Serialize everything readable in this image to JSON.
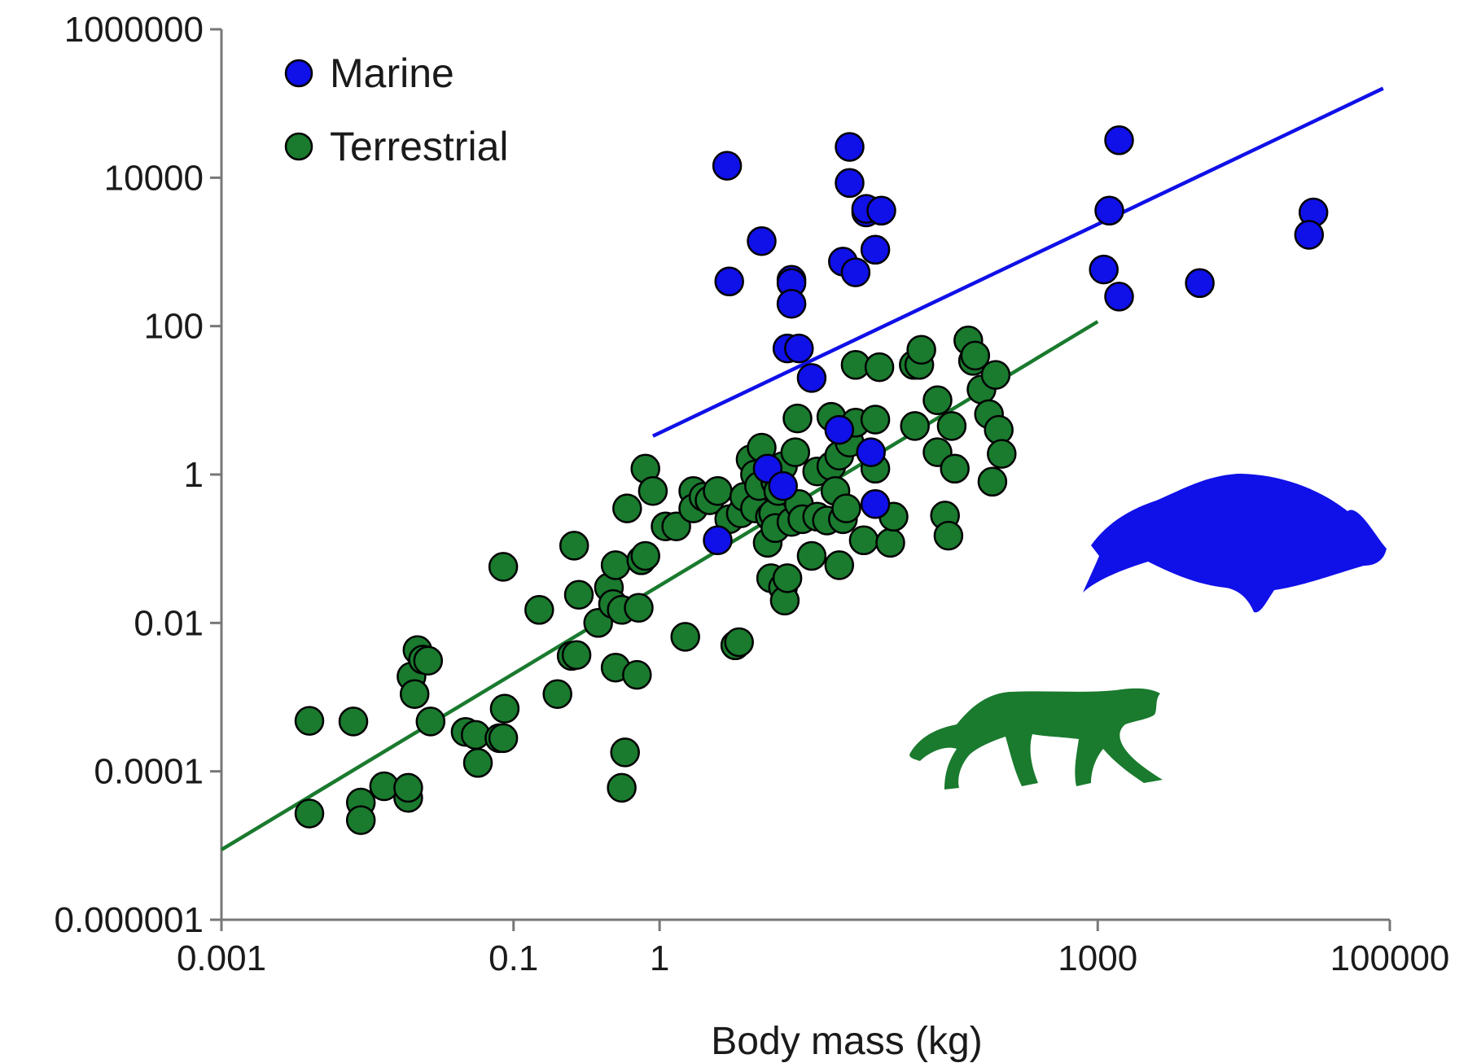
{
  "chart_data": {
    "type": "scatter",
    "title": "",
    "xlabel": "Body mass (kg)",
    "ylabel": "",
    "xscale": "log",
    "yscale": "log",
    "xlim": [
      0.001,
      100000
    ],
    "ylim": [
      1e-06,
      1000000
    ],
    "xticks": [
      "0.001",
      "0.1",
      "1",
      "1000",
      "100000"
    ],
    "xtick_values": [
      0.001,
      0.1,
      1,
      1000,
      100000
    ],
    "yticks": [
      "0.000001",
      "0.0001",
      "0.01",
      "1",
      "100",
      "10000",
      "1000000"
    ],
    "ytick_values": [
      1e-06,
      0.0001,
      0.01,
      1,
      100,
      10000,
      1000000
    ],
    "grid": false,
    "legend_position": "top-left",
    "colors": {
      "Marine": "#1010e8",
      "Terrestrial": "#1a7a2e"
    },
    "series": [
      {
        "name": "Marine",
        "points": [
          [
            2.9,
            14500
          ],
          [
            20,
            26000
          ],
          [
            20,
            8500
          ],
          [
            26,
            3400
          ],
          [
            26,
            3800
          ],
          [
            33,
            3600
          ],
          [
            30,
            1070
          ],
          [
            5.0,
            1400
          ],
          [
            8.0,
            420
          ],
          [
            3.0,
            400
          ],
          [
            8.0,
            380
          ],
          [
            8.0,
            200
          ],
          [
            18,
            740
          ],
          [
            22,
            530
          ],
          [
            1200,
            3600
          ],
          [
            30000,
            3400
          ],
          [
            28000,
            1700
          ],
          [
            1100,
            580
          ],
          [
            1400,
            250
          ],
          [
            5000,
            380
          ],
          [
            1400,
            32000
          ],
          [
            7.5,
            50
          ],
          [
            9.0,
            50
          ],
          [
            11,
            20
          ],
          [
            17,
            4.0
          ],
          [
            28,
            2.0
          ],
          [
            30,
            0.4
          ],
          [
            5.5,
            1.2
          ],
          [
            7.0,
            0.7
          ],
          [
            2.5,
            0.13
          ]
        ]
      },
      {
        "name": "Terrestrial",
        "points": [
          [
            0.004,
            0.00048
          ],
          [
            0.004,
            2.7e-05
          ],
          [
            0.008,
            0.00047
          ],
          [
            0.009,
            3.8e-05
          ],
          [
            0.009,
            2.2e-05
          ],
          [
            0.013,
            6.3e-05
          ],
          [
            0.019,
            4.4e-05
          ],
          [
            0.019,
            6e-05
          ],
          [
            0.02,
            0.0019
          ],
          [
            0.021,
            0.0011
          ],
          [
            0.022,
            0.0043
          ],
          [
            0.024,
            0.0032
          ],
          [
            0.026,
            0.0031
          ],
          [
            0.027,
            0.00047
          ],
          [
            0.047,
            0.00034
          ],
          [
            0.055,
            0.00031
          ],
          [
            0.057,
            0.00013
          ],
          [
            0.08,
            0.00028
          ],
          [
            0.085,
            0.00028
          ],
          [
            0.087,
            0.0007
          ],
          [
            0.085,
            0.057
          ],
          [
            0.15,
            0.015
          ],
          [
            0.2,
            0.0011
          ],
          [
            0.25,
            0.0036
          ],
          [
            0.27,
            0.0037
          ],
          [
            0.26,
            0.11
          ],
          [
            0.28,
            0.024
          ],
          [
            0.38,
            0.01
          ],
          [
            0.45,
            0.03
          ],
          [
            0.48,
            0.018
          ],
          [
            0.5,
            0.0025
          ],
          [
            0.55,
            0.015
          ],
          [
            0.5,
            0.06
          ],
          [
            0.6,
            0.35
          ],
          [
            0.55,
            6e-05
          ],
          [
            0.58,
            0.00018
          ],
          [
            0.7,
            0.002
          ],
          [
            0.72,
            0.016
          ],
          [
            0.75,
            0.07
          ],
          [
            0.8,
            0.08
          ],
          [
            0.8,
            1.2
          ],
          [
            0.9,
            0.6
          ],
          [
            1.1,
            0.2
          ],
          [
            1.3,
            0.2
          ],
          [
            1.5,
            0.0065
          ],
          [
            1.7,
            0.6
          ],
          [
            1.7,
            0.35
          ],
          [
            2.0,
            0.5
          ],
          [
            2.2,
            0.45
          ],
          [
            2.5,
            0.6
          ],
          [
            3.0,
            0.25
          ],
          [
            3.3,
            0.005
          ],
          [
            3.5,
            0.0055
          ],
          [
            3.6,
            0.3
          ],
          [
            3.8,
            0.5
          ],
          [
            4.2,
            1.6
          ],
          [
            4.5,
            1.0
          ],
          [
            4.5,
            0.35
          ],
          [
            4.8,
            0.7
          ],
          [
            5.0,
            2.3
          ],
          [
            5.5,
            0.12
          ],
          [
            5.7,
            0.27
          ],
          [
            5.8,
            0.04
          ],
          [
            6.0,
            0.3
          ],
          [
            6.2,
            0.19
          ],
          [
            6.2,
            0.8
          ],
          [
            6.5,
            0.6
          ],
          [
            7.0,
            0.03
          ],
          [
            7.0,
            1.3
          ],
          [
            7.2,
            0.02
          ],
          [
            7.5,
            0.04
          ],
          [
            8.0,
            0.23
          ],
          [
            8.5,
            2.0
          ],
          [
            8.8,
            5.7
          ],
          [
            9.0,
            0.4
          ],
          [
            9.5,
            0.25
          ],
          [
            11,
            0.08
          ],
          [
            12,
            1.1
          ],
          [
            12,
            0.27
          ],
          [
            14,
            0.24
          ],
          [
            15,
            1.3
          ],
          [
            15,
            6.0
          ],
          [
            16,
            0.6
          ],
          [
            17,
            0.06
          ],
          [
            17,
            1.8
          ],
          [
            18,
            0.25
          ],
          [
            19,
            0.35
          ],
          [
            20,
            2.7
          ],
          [
            22,
            30
          ],
          [
            22,
            5.0
          ],
          [
            25,
            0.13
          ],
          [
            30,
            5.5
          ],
          [
            30,
            1.2
          ],
          [
            32,
            28
          ],
          [
            38,
            0.12
          ],
          [
            40,
            0.27
          ],
          [
            55,
            30
          ],
          [
            56,
            4.5
          ],
          [
            60,
            30
          ],
          [
            62,
            48
          ],
          [
            80,
            2.0
          ],
          [
            80,
            10
          ],
          [
            90,
            0.28
          ],
          [
            95,
            0.15
          ],
          [
            100,
            4.5
          ],
          [
            105,
            1.2
          ],
          [
            130,
            64
          ],
          [
            140,
            34
          ],
          [
            145,
            40
          ],
          [
            160,
            14
          ],
          [
            180,
            6.5
          ],
          [
            190,
            0.8
          ],
          [
            200,
            22
          ],
          [
            210,
            4.0
          ],
          [
            220,
            1.9
          ]
        ]
      }
    ],
    "trend_lines": [
      {
        "series": "Marine",
        "x": [
          0.9,
          90000
        ],
        "y": [
          3.3,
          160000
        ]
      },
      {
        "series": "Terrestrial",
        "x": [
          0.001,
          1000
        ],
        "y": [
          8.8e-06,
          115
        ]
      }
    ]
  }
}
